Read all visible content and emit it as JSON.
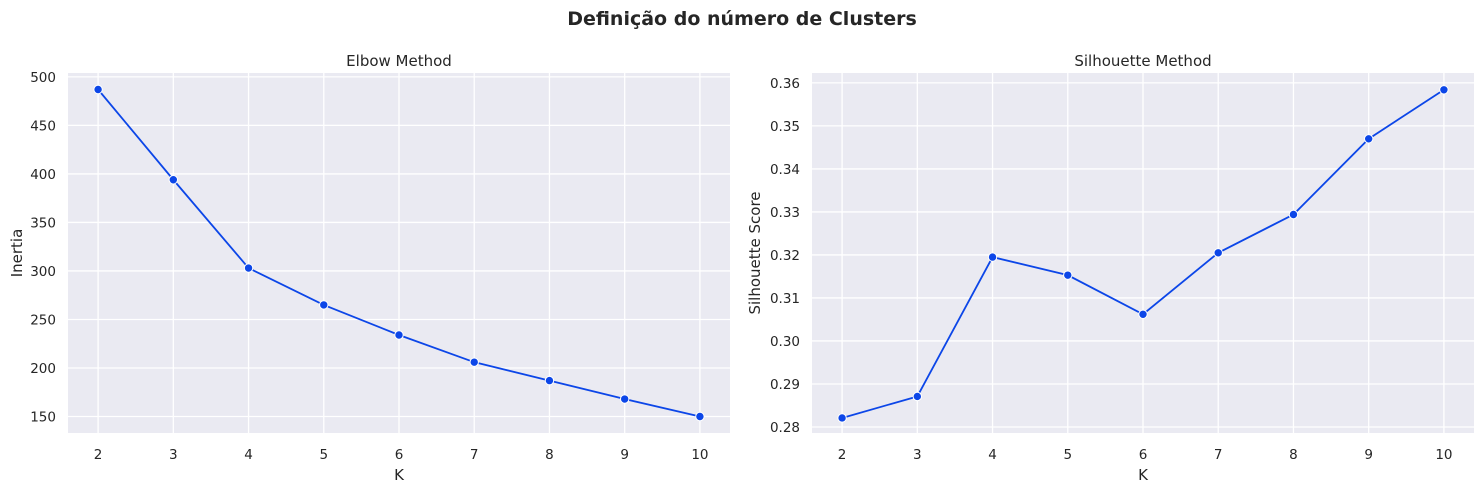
{
  "figure": {
    "title": "Definição do número de Clusters"
  },
  "chart_data": [
    {
      "type": "line",
      "title": "Elbow Method",
      "xlabel": "K",
      "ylabel": "Inertia",
      "x": [
        2,
        3,
        4,
        5,
        6,
        7,
        8,
        9,
        10
      ],
      "series": [
        {
          "values": [
            487,
            394,
            303,
            265,
            234,
            206,
            187,
            168,
            150
          ]
        }
      ],
      "xlim": [
        1.6,
        10.4
      ],
      "ylim": [
        133,
        504
      ],
      "xticks": [
        2,
        3,
        4,
        5,
        6,
        7,
        8,
        9,
        10
      ],
      "yticks": [
        150,
        200,
        250,
        300,
        350,
        400,
        450,
        500
      ],
      "ytick_decimals": 0,
      "grid": true,
      "marker": "o",
      "color": "#0c46e8"
    },
    {
      "type": "line",
      "title": "Silhouette Method",
      "xlabel": "K",
      "ylabel": "Silhouette Score",
      "x": [
        2,
        3,
        4,
        5,
        6,
        7,
        8,
        9,
        10
      ],
      "series": [
        {
          "values": [
            0.2821,
            0.2871,
            0.3195,
            0.3153,
            0.3062,
            0.3205,
            0.3294,
            0.347,
            0.3584
          ]
        }
      ],
      "xlim": [
        1.6,
        10.4
      ],
      "ylim": [
        0.2786,
        0.3623
      ],
      "xticks": [
        2,
        3,
        4,
        5,
        6,
        7,
        8,
        9,
        10
      ],
      "yticks": [
        0.28,
        0.29,
        0.3,
        0.31,
        0.32,
        0.33,
        0.34,
        0.35,
        0.36
      ],
      "ytick_decimals": 2,
      "grid": true,
      "marker": "o",
      "color": "#0c46e8"
    }
  ]
}
